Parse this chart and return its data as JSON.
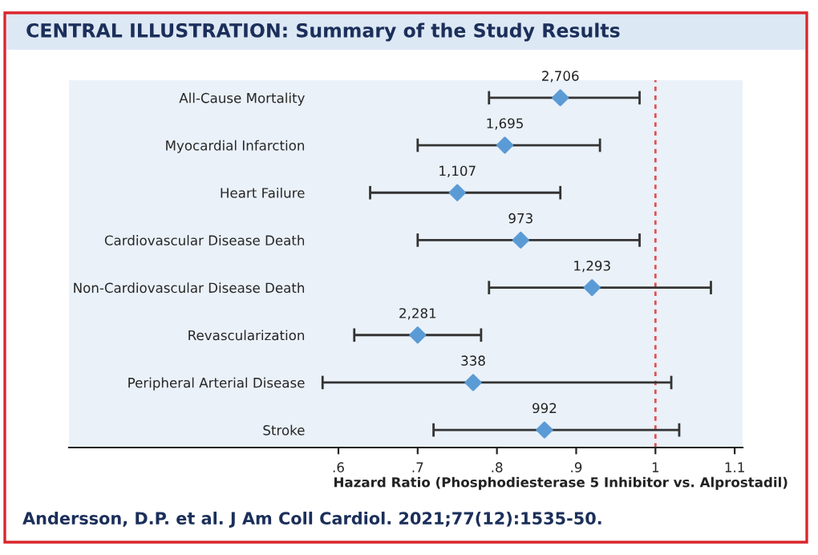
{
  "chart_data": {
    "type": "scatter",
    "orientation": "horizontal",
    "title": "CENTRAL ILLUSTRATION: Summary of the Study Results",
    "xlabel": "Hazard Ratio (Phosphodiesterase 5 Inhibitor vs. Alprostadil)",
    "categories": [
      "All-Cause Mortality",
      "Myocardial Infarction",
      "Heart Failure",
      "Cardiovascular Disease Death",
      "Non-Cardiovascular Disease Death",
      "Revascularization",
      "Peripheral Arterial Disease",
      "Stroke"
    ],
    "series": [
      {
        "color": "#5b9bd5",
        "values": [
          0.88,
          0.81,
          0.75,
          0.83,
          0.92,
          0.7,
          0.77,
          0.86
        ],
        "errors": [
          [
            0.79,
            0.98
          ],
          [
            0.7,
            0.93
          ],
          [
            0.64,
            0.88
          ],
          [
            0.7,
            0.98
          ],
          [
            0.79,
            1.07
          ],
          [
            0.62,
            0.78
          ],
          [
            0.58,
            1.02
          ],
          [
            0.72,
            1.03
          ]
        ]
      }
    ],
    "marker": "diamond",
    "xlim": [
      0.26,
      1.11
    ],
    "xticks": [
      {
        "value": 0.6,
        "label": ".6"
      },
      {
        "value": 0.7,
        "label": ".7"
      },
      {
        "value": 0.8,
        "label": ".8"
      },
      {
        "value": 0.9,
        "label": ".9"
      },
      1,
      1.1
    ],
    "ref_lines": [
      {
        "axis": "x",
        "value": 1,
        "color": "#e05050",
        "line_style": "dashed"
      }
    ],
    "grid": false,
    "legend": false,
    "annotations": [
      {
        "text": "2,706",
        "x": 0.88,
        "y": "All-Cause Mortality"
      },
      {
        "text": "1,695",
        "x": 0.81,
        "y": "Myocardial Infarction"
      },
      {
        "text": "1,107",
        "x": 0.75,
        "y": "Heart Failure"
      },
      {
        "text": "973",
        "x": 0.83,
        "y": "Cardiovascular Disease Death"
      },
      {
        "text": "1,293",
        "x": 0.92,
        "y": "Non-Cardiovascular Disease Death"
      },
      {
        "text": "2,281",
        "x": 0.7,
        "y": "Revascularization"
      },
      {
        "text": "338",
        "x": 0.77,
        "y": "Peripheral Arterial Disease"
      },
      {
        "text": "992",
        "x": 0.86,
        "y": "Stroke"
      },
      "Andersson, D.P. et al. J Am Coll Cardiol. 2021;77(12):1535-50."
    ]
  }
}
